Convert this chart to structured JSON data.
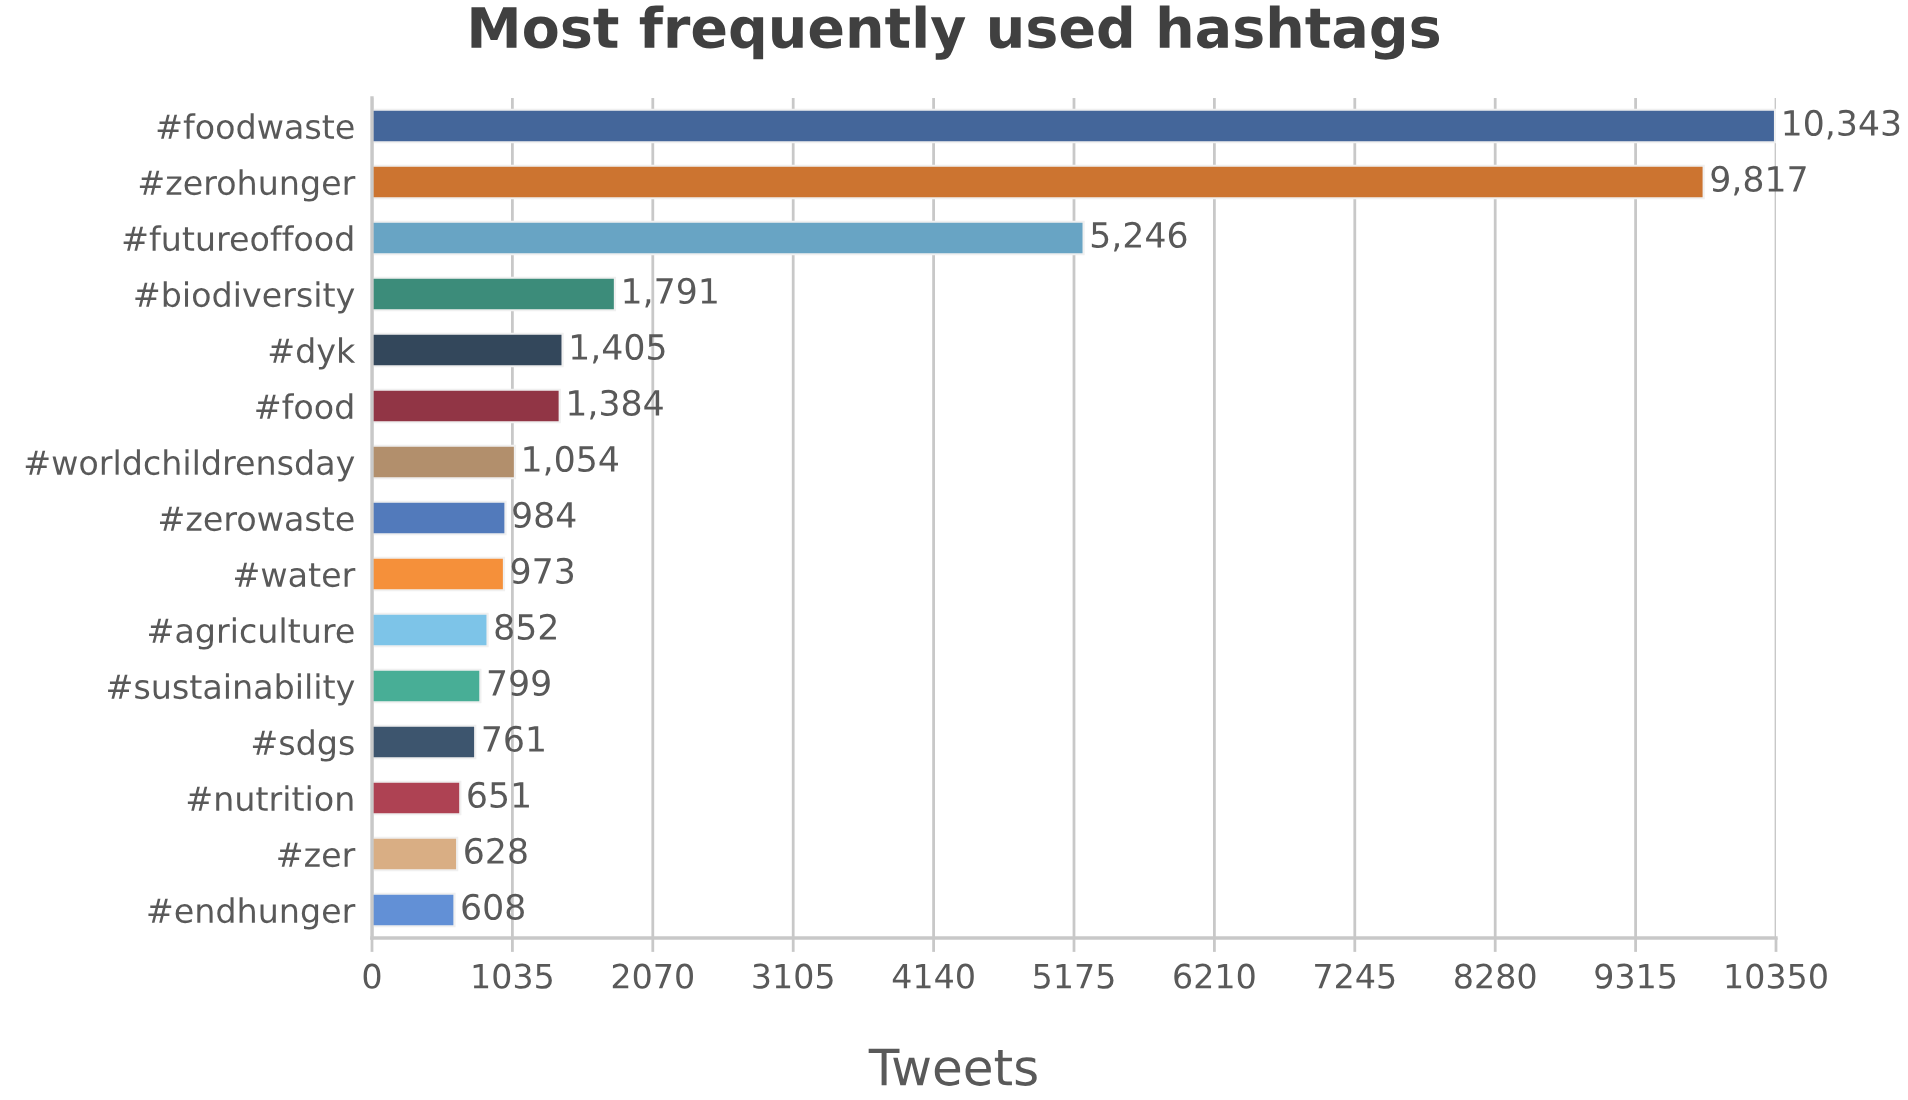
{
  "chart_data": {
    "type": "bar",
    "orientation": "horizontal",
    "title": "Most frequently used hashtags",
    "xlabel": "Tweets",
    "categories": [
      "#foodwaste",
      "#zerohunger",
      "#futureoffood",
      "#biodiversity",
      "#dyk",
      "#food",
      "#worldchildrensday",
      "#zerowaste",
      "#water",
      "#agriculture",
      "#sustainability",
      "#sdgs",
      "#nutrition",
      "#zer",
      "#endhunger"
    ],
    "values": [
      10343,
      9817,
      5246,
      1791,
      1405,
      1384,
      1054,
      984,
      973,
      852,
      799,
      761,
      651,
      628,
      608
    ],
    "value_labels": [
      "10,343",
      "9,817",
      "5,246",
      "1,791",
      "1,405",
      "1,384",
      "1,054",
      "984",
      "973",
      "852",
      "799",
      "761",
      "651",
      "628",
      "608"
    ],
    "colors": [
      "#44669a",
      "#cc7430",
      "#68a4c4",
      "#3c8c7a",
      "#33475b",
      "#913545",
      "#b28f6c",
      "#527abb",
      "#f5903a",
      "#7dc4e8",
      "#48ae96",
      "#3d556e",
      "#ae4253",
      "#d9ae84",
      "#6290d6"
    ],
    "xlim": [
      0,
      10350
    ],
    "xticks": [
      0,
      1035,
      2070,
      3105,
      4140,
      5175,
      6210,
      7245,
      8280,
      9315,
      10350
    ],
    "grid": "x"
  }
}
